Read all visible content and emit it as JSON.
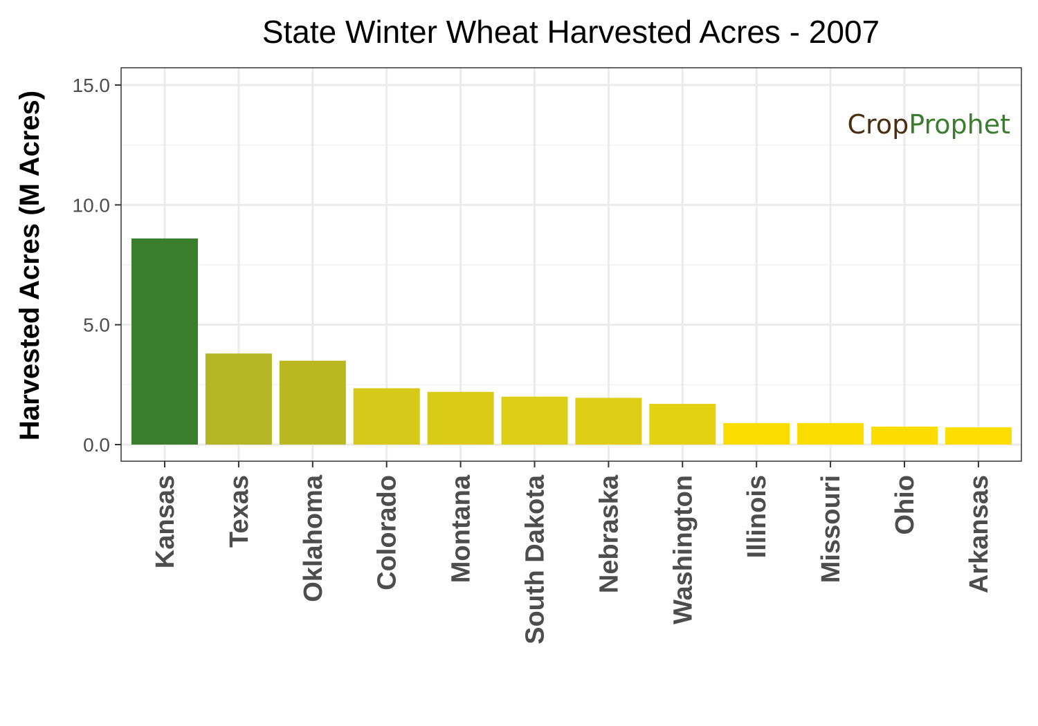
{
  "chart_data": {
    "type": "bar",
    "title": "State Winter Wheat Harvested Acres - 2007",
    "xlabel": "",
    "ylabel": "Harvested Acres (M Acres)",
    "ylim": [
      0,
      15.5
    ],
    "yticks": [
      "0.0",
      "5.0",
      "10.0",
      "15.0"
    ],
    "grid": true,
    "legend": "none",
    "categories": [
      "Kansas",
      "Texas",
      "Oklahoma",
      "Colorado",
      "Montana",
      "South Dakota",
      "Nebraska",
      "Washington",
      "Illinois",
      "Missouri",
      "Ohio",
      "Arkansas"
    ],
    "values": [
      8.6,
      3.8,
      3.5,
      2.35,
      2.2,
      2.0,
      1.95,
      1.7,
      0.9,
      0.9,
      0.75,
      0.72
    ],
    "colors": [
      "#3a7d2c",
      "#b4b624",
      "#b9b821",
      "#d6c919",
      "#d9cb17",
      "#dccd15",
      "#ddce15",
      "#e4d212",
      "#fbdc00",
      "#fbdc00",
      "#fddd00",
      "#fede00"
    ]
  },
  "watermark": {
    "part1": "Crop",
    "part2": "Prophet",
    "color1": "#4a2e12",
    "color2": "#3a7d2c"
  }
}
